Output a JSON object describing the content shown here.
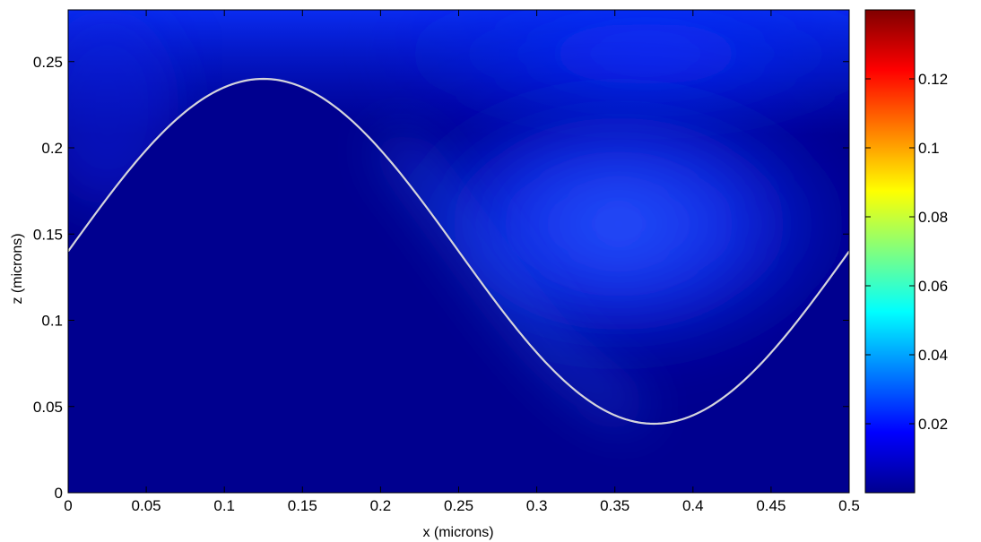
{
  "chart_data": {
    "type": "heatmap",
    "title": "",
    "xlabel": "x (microns)",
    "ylabel": "z (microns)",
    "xlim": [
      0,
      0.5
    ],
    "ylim": [
      0,
      0.28
    ],
    "x_ticks": [
      "0",
      "0.05",
      "0.1",
      "0.15",
      "0.2",
      "0.25",
      "0.3",
      "0.35",
      "0.4",
      "0.45",
      "0.5"
    ],
    "x_tick_values": [
      0,
      0.05,
      0.1,
      0.15,
      0.2,
      0.25,
      0.3,
      0.35,
      0.4,
      0.45,
      0.5
    ],
    "y_ticks": [
      "0",
      "0.05",
      "0.1",
      "0.15",
      "0.2",
      "0.25"
    ],
    "y_tick_values": [
      0,
      0.05,
      0.1,
      0.15,
      0.2,
      0.25
    ],
    "grid": false,
    "colormap": "jet",
    "colorbar": {
      "range": [
        0,
        0.14
      ],
      "ticks": [
        "0.02",
        "0.04",
        "0.06",
        "0.08",
        "0.1",
        "0.12"
      ],
      "tick_values": [
        0.02,
        0.04,
        0.06,
        0.08,
        0.1,
        0.12
      ],
      "placement": "right"
    },
    "interface_curve": {
      "description_formula": "z = 0.14 + 0.1 * sin(4*pi*x)",
      "mean_z": 0.14,
      "amplitude": 0.1,
      "period_x": 0.5,
      "peak": [
        0.125,
        0.24
      ],
      "trough": [
        0.375,
        0.04
      ],
      "color": "#d4d4dc"
    },
    "background_color": "#00008f"
  }
}
